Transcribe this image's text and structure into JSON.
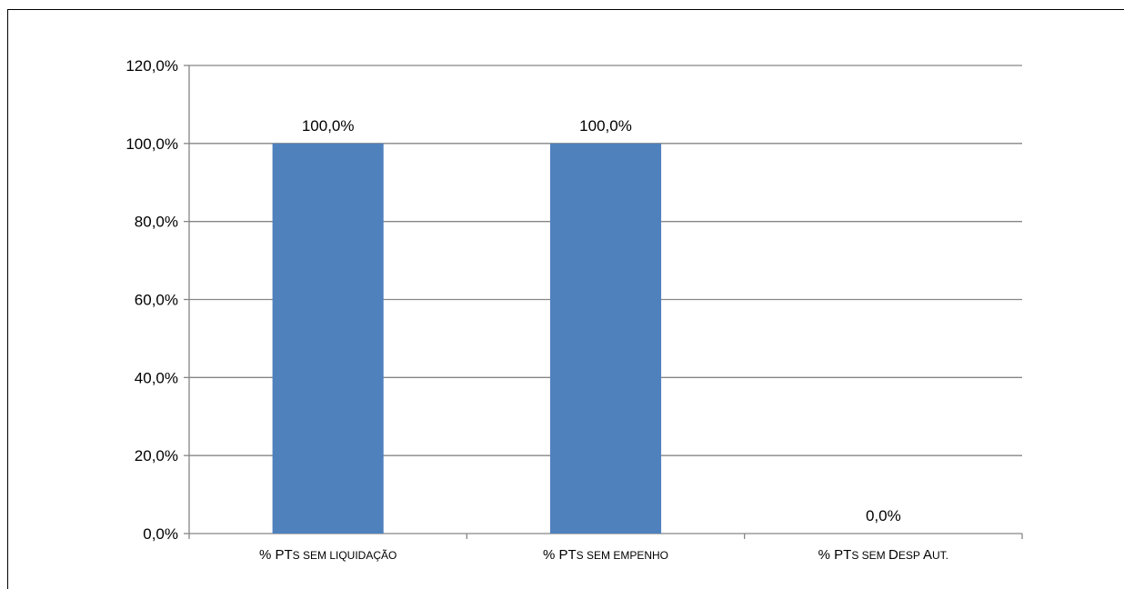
{
  "chart_data": {
    "type": "bar",
    "categories": [
      [
        {
          "t": "% PT",
          "sc": false
        },
        {
          "t": "S SEM LIQUIDAÇÃO",
          "sc": true
        }
      ],
      [
        {
          "t": "% PT",
          "sc": false
        },
        {
          "t": "S SEM EMPENHO",
          "sc": true
        }
      ],
      [
        {
          "t": "% PT",
          "sc": false
        },
        {
          "t": "S SEM ",
          "sc": true
        },
        {
          "t": "D",
          "sc": false
        },
        {
          "t": "ESP ",
          "sc": true
        },
        {
          "t": "A",
          "sc": false
        },
        {
          "t": "UT.",
          "sc": true
        }
      ]
    ],
    "values": [
      1.0,
      1.0,
      0.0
    ],
    "data_labels": [
      "100,0%",
      "100,0%",
      "0,0%"
    ],
    "yticks": [
      0,
      0.2,
      0.4,
      0.6,
      0.8,
      1.0,
      1.2
    ],
    "ytick_labels": [
      "0,0%",
      "20,0%",
      "40,0%",
      "60,0%",
      "80,0%",
      "100,0%",
      "120,0%"
    ],
    "ylim": [
      0,
      1.2
    ],
    "grid": true,
    "legend": "none",
    "title": "",
    "xlabel": "",
    "ylabel": "",
    "colors": {
      "bar": "#4F81BD",
      "grid": "#868686",
      "axis": "#868686"
    }
  }
}
